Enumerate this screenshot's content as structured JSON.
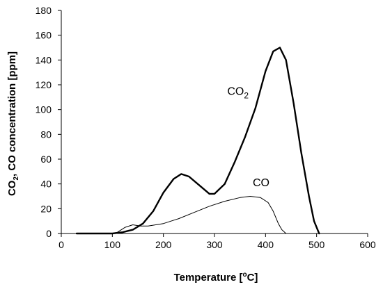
{
  "chart_data": {
    "type": "line",
    "xlabel_parts": [
      "Temperature [",
      "o",
      "C]"
    ],
    "ylabel_parts": [
      "CO",
      "2",
      ", CO concentration [ppm]"
    ],
    "xlim": [
      0,
      600
    ],
    "ylim": [
      0,
      180
    ],
    "x_ticks": [
      "0",
      "100",
      "200",
      "300",
      "400",
      "500",
      "600"
    ],
    "y_ticks": [
      "0",
      "20",
      "40",
      "60",
      "80",
      "100",
      "120",
      "140",
      "160",
      "180"
    ],
    "grid": false,
    "legend": "none",
    "series": [
      {
        "name": "CO2",
        "label_parts": [
          "CO",
          "2"
        ],
        "label_anchor": {
          "x": 325,
          "y": 112
        },
        "color": "#000000",
        "line_width": 2.4,
        "x": [
          30,
          100,
          120,
          140,
          160,
          180,
          200,
          220,
          235,
          250,
          270,
          290,
          300,
          320,
          340,
          360,
          380,
          400,
          415,
          428,
          440,
          455,
          470,
          485,
          495,
          505
        ],
        "y": [
          0,
          0,
          1,
          3,
          8,
          18,
          33,
          44,
          48,
          46,
          39,
          32,
          32,
          40,
          58,
          78,
          101,
          131,
          147,
          150,
          140,
          105,
          65,
          30,
          10,
          0
        ]
      },
      {
        "name": "CO",
        "label_parts": [
          "CO"
        ],
        "label_anchor": {
          "x": 375,
          "y": 38
        },
        "color": "#000000",
        "line_width": 1,
        "x": [
          30,
          100,
          110,
          125,
          140,
          155,
          170,
          200,
          230,
          260,
          290,
          320,
          350,
          370,
          390,
          405,
          415,
          425,
          432,
          440
        ],
        "y": [
          0,
          0,
          1,
          5,
          7,
          6,
          6,
          8,
          12,
          17,
          22,
          26,
          29,
          30,
          29,
          25,
          18,
          8,
          3,
          0
        ]
      }
    ]
  }
}
